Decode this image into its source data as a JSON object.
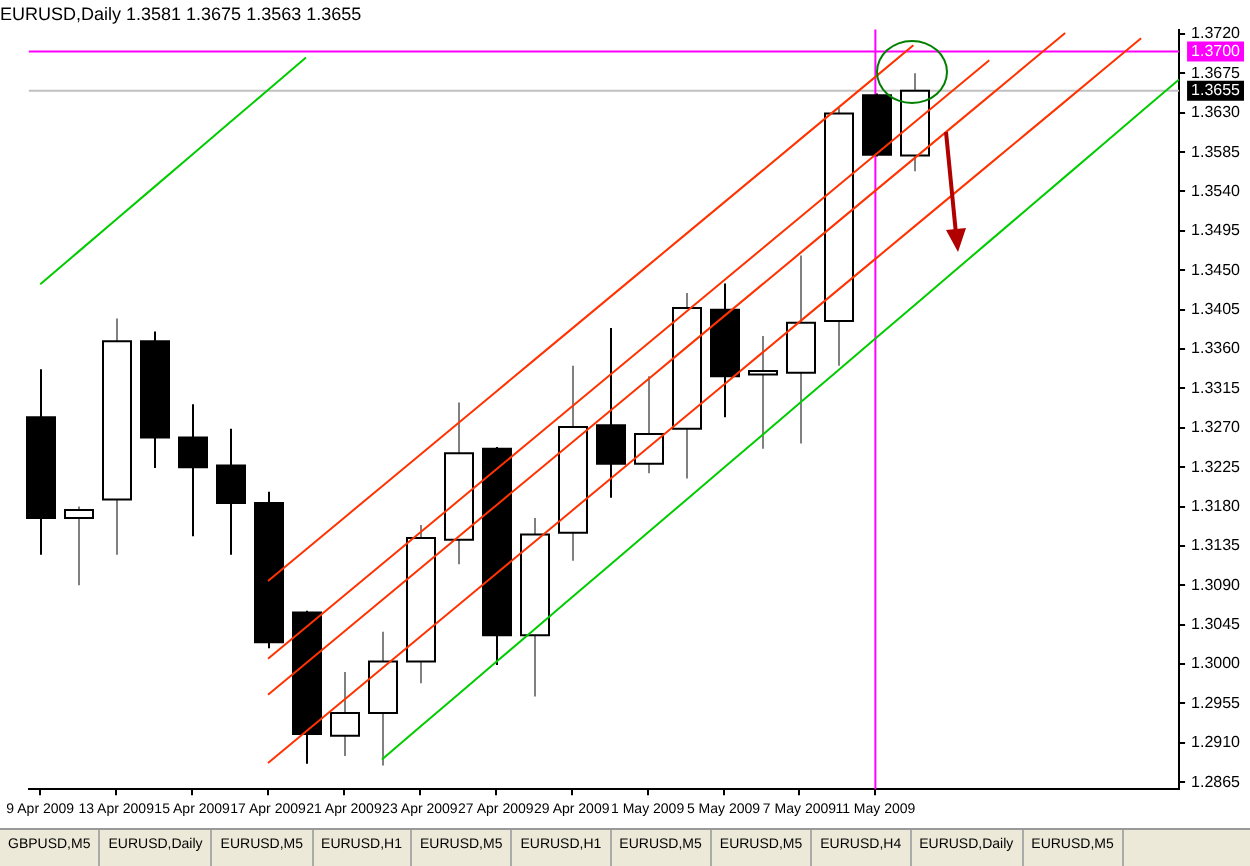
{
  "chart_data": {
    "type": "candlestick",
    "title": "EURUSD,Daily 1.3581 1.3675 1.3563 1.3655",
    "categories": [
      "9 Apr 2009",
      null,
      "13 Apr 2009",
      null,
      "15 Apr 2009",
      null,
      "17 Apr 2009",
      null,
      "21 Apr 2009",
      null,
      "23 Apr 2009",
      null,
      "27 Apr 2009",
      null,
      "29 Apr 2009",
      null,
      "1 May 2009",
      null,
      "5 May 2009",
      null,
      "7 May 2009",
      null,
      "11 May 2009",
      null,
      null,
      null,
      null,
      null,
      null,
      null,
      null
    ],
    "ohlc": [
      [
        1.3282,
        1.3337,
        1.3125,
        1.3167
      ],
      [
        1.3167,
        1.318,
        1.309,
        1.3176
      ],
      [
        1.3188,
        1.3395,
        1.3125,
        1.3369
      ],
      [
        1.3369,
        1.338,
        1.3224,
        1.3259
      ],
      [
        1.3259,
        1.3297,
        1.3146,
        1.3225
      ],
      [
        1.3227,
        1.3269,
        1.3125,
        1.3184
      ],
      [
        1.3184,
        1.3197,
        1.3018,
        1.3025
      ],
      [
        1.3059,
        1.3061,
        1.2886,
        1.292
      ],
      [
        1.2918,
        1.2991,
        1.2895,
        1.2944
      ],
      [
        1.2944,
        1.3037,
        1.2884,
        1.3003
      ],
      [
        1.3003,
        1.3159,
        1.2978,
        1.3144
      ],
      [
        1.3142,
        1.3299,
        1.3114,
        1.3241
      ],
      [
        1.3246,
        1.3248,
        1.2999,
        1.3033
      ],
      [
        1.3033,
        1.3167,
        1.2963,
        1.3148
      ],
      [
        1.315,
        1.3341,
        1.3118,
        1.3271
      ],
      [
        1.3273,
        1.3384,
        1.319,
        1.3229
      ],
      [
        1.3229,
        1.3329,
        1.3218,
        1.3263
      ],
      [
        1.3269,
        1.3424,
        1.3212,
        1.3407
      ],
      [
        1.3405,
        1.3435,
        1.3282,
        1.3329
      ],
      [
        1.3331,
        1.3375,
        1.3246,
        1.3335
      ],
      [
        1.3333,
        1.3467,
        1.3252,
        1.339
      ],
      [
        1.3392,
        1.3635,
        1.3341,
        1.3629
      ],
      [
        1.365,
        1.3652,
        1.358,
        1.3582
      ],
      [
        1.3581,
        1.3675,
        1.3563,
        1.3655
      ],
      null,
      null,
      null,
      null,
      null,
      null,
      null
    ],
    "series": [
      {
        "type": "line",
        "color": "#ff3300",
        "values": [
          null,
          null,
          null,
          null,
          null,
          null,
          1.3095,
          1.3131,
          1.3167,
          1.3203,
          1.3239,
          1.3275,
          1.3311,
          1.3347,
          1.3383,
          1.3419,
          1.3455,
          1.3491,
          1.3527,
          1.3563,
          1.3599,
          1.3635,
          1.3671,
          1.3707,
          null,
          null,
          null,
          null,
          null,
          null,
          null
        ]
      },
      {
        "type": "line",
        "color": "#ff3300",
        "values": [
          null,
          null,
          null,
          null,
          null,
          null,
          1.3006,
          1.3042,
          1.3078,
          1.3114,
          1.315,
          1.3186,
          1.3222,
          1.3258,
          1.3294,
          1.333,
          1.3366,
          1.3402,
          1.3438,
          1.3474,
          1.351,
          1.3546,
          1.3582,
          1.3618,
          1.3654,
          1.369,
          null,
          null,
          null,
          null,
          null
        ]
      },
      {
        "type": "line",
        "color": "#ff3300",
        "values": [
          null,
          null,
          null,
          null,
          null,
          null,
          1.2965,
          1.3001,
          1.3037,
          1.3073,
          1.3109,
          1.3145,
          1.3181,
          1.3217,
          1.3253,
          1.3289,
          1.3325,
          1.3361,
          1.3397,
          1.3433,
          1.3469,
          1.3505,
          1.3541,
          1.3577,
          1.3613,
          1.3649,
          1.3685,
          1.3721,
          null,
          null,
          null
        ]
      },
      {
        "type": "line",
        "color": "#ff3300",
        "values": [
          null,
          null,
          null,
          null,
          null,
          null,
          1.2887,
          1.2923,
          1.2959,
          1.2995,
          1.3031,
          1.3067,
          1.3103,
          1.3139,
          1.3175,
          1.3211,
          1.3247,
          1.3283,
          1.3319,
          1.3355,
          1.3391,
          1.3427,
          1.3463,
          1.3499,
          1.3535,
          1.3571,
          1.3607,
          1.3643,
          1.3679,
          1.3715,
          null
        ]
      },
      {
        "type": "line",
        "color": "#00cc00",
        "values": [
          null,
          null,
          null,
          null,
          null,
          null,
          null,
          null,
          null,
          1.2891,
          1.2928,
          1.2965,
          1.3002,
          1.3039,
          1.3076,
          1.3113,
          1.315,
          1.3187,
          1.3224,
          1.3261,
          1.3298,
          1.3335,
          1.3372,
          1.3409,
          1.3446,
          1.3483,
          1.352,
          1.3557,
          1.3594,
          1.3631,
          1.3668
        ]
      },
      {
        "type": "line",
        "color": "#00cc00",
        "values": [
          1.3434,
          1.3471,
          1.3508,
          1.3545,
          1.3582,
          1.3619,
          1.3656,
          1.3693,
          null,
          null,
          null,
          null,
          null,
          null,
          null,
          null,
          null,
          null,
          null,
          null,
          null,
          null,
          null,
          null,
          null,
          null,
          null,
          null,
          null,
          null,
          null
        ]
      }
    ],
    "ylim": [
      1.2857,
      1.3725
    ],
    "yticks": [
      {
        "value": 1.372,
        "label": "1.3720"
      },
      {
        "value": 1.3675,
        "label": "1.3675"
      },
      {
        "value": 1.363,
        "label": "1.3630"
      },
      {
        "value": 1.3585,
        "label": "1.3585"
      },
      {
        "value": 1.354,
        "label": "1.3540"
      },
      {
        "value": 1.3495,
        "label": "1.3495"
      },
      {
        "value": 1.345,
        "label": "1.3450"
      },
      {
        "value": 1.3405,
        "label": "1.3405"
      },
      {
        "value": 1.336,
        "label": "1.3360"
      },
      {
        "value": 1.3315,
        "label": "1.3315"
      },
      {
        "value": 1.327,
        "label": "1.3270"
      },
      {
        "value": 1.3225,
        "label": "1.3225"
      },
      {
        "value": 1.318,
        "label": "1.3180"
      },
      {
        "value": 1.3135,
        "label": "1.3135"
      },
      {
        "value": 1.309,
        "label": "1.3090"
      },
      {
        "value": 1.3045,
        "label": "1.3045"
      },
      {
        "value": 1.3,
        "label": "1.3000"
      },
      {
        "value": 1.2955,
        "label": "1.2955"
      },
      {
        "value": 1.291,
        "label": "1.2910"
      },
      {
        "value": 1.2865,
        "label": "1.2865"
      }
    ],
    "ref_lines": [
      {
        "axis": "y",
        "value": 1.37,
        "label": "1.3700",
        "color": "#ff00ff"
      },
      {
        "axis": "y",
        "value": 1.3655,
        "label": "1.3655",
        "color": "#c0c0c0"
      },
      {
        "axis": "x",
        "value": "11 May 2009",
        "color": "#ff00ff"
      }
    ],
    "annotations": [
      "GBPUSD,M5",
      "EURUSD,Daily",
      "EURUSD,M5",
      "EURUSD,H1",
      "EURUSD,M5",
      "EURUSD,H1",
      "EURUSD,M5",
      "EURUSD,M5",
      "EURUSD,H4",
      "EURUSD,Daily",
      "EURUSD,M5"
    ],
    "grid": false,
    "legend": false
  }
}
